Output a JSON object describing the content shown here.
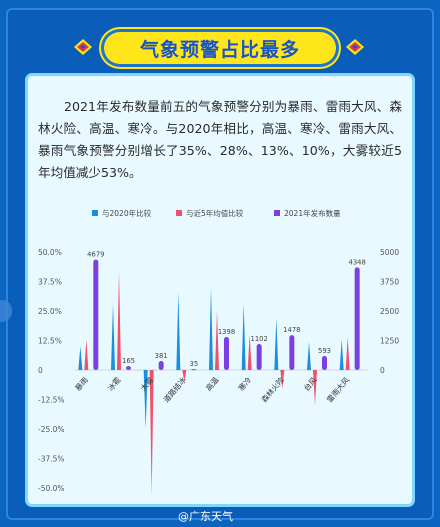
{
  "header": {
    "title": "气象预警占比最多"
  },
  "description": "2021年发布数量前五的气象预警分别为暴雨、雷雨大风、森林火险、高温、寒冷。与2020年相比，高温、寒冷、雷雨大风、暴雨气象预警分别增长了35%、28%、13%、10%，大雾较近5年均值减少53%。",
  "footer": {
    "source": "@广东天气"
  },
  "colors": {
    "series1": "#1c8ee0",
    "series2": "#f0506e",
    "series3": "#7b3fe4",
    "pill": "#ffe61a",
    "panel": "#e8faff"
  },
  "chart_data": {
    "type": "bar",
    "categories": [
      "暴雨",
      "冰雹",
      "大雾",
      "道路结冰",
      "高温",
      "寒冷",
      "森林火险",
      "台风",
      "雷雨大风"
    ],
    "series": [
      {
        "name": "与2020年比较",
        "axis": "left",
        "values": [
          10,
          28,
          -25,
          33,
          35,
          28,
          22,
          12,
          13
        ]
      },
      {
        "name": "与近5年均值比较",
        "axis": "left",
        "values": [
          13,
          42,
          -53,
          -5,
          25,
          15,
          -8,
          -15,
          14
        ]
      },
      {
        "name": "2021年发布数量",
        "axis": "right",
        "values": [
          4679,
          165,
          381,
          35,
          1398,
          1102,
          1478,
          593,
          4348
        ]
      }
    ],
    "left_axis": {
      "ticks": [
        "50.0%",
        "37.5%",
        "25.0%",
        "12.5%",
        "0",
        "-12.5%",
        "-25.0%",
        "-37.5%",
        "-50.0%"
      ],
      "ylim": [
        -50,
        50
      ]
    },
    "right_axis": {
      "ticks": [
        "5000",
        "3750",
        "2500",
        "1250",
        "0"
      ],
      "ylim": [
        0,
        5000
      ]
    },
    "grid": false,
    "legend_position": "top"
  }
}
